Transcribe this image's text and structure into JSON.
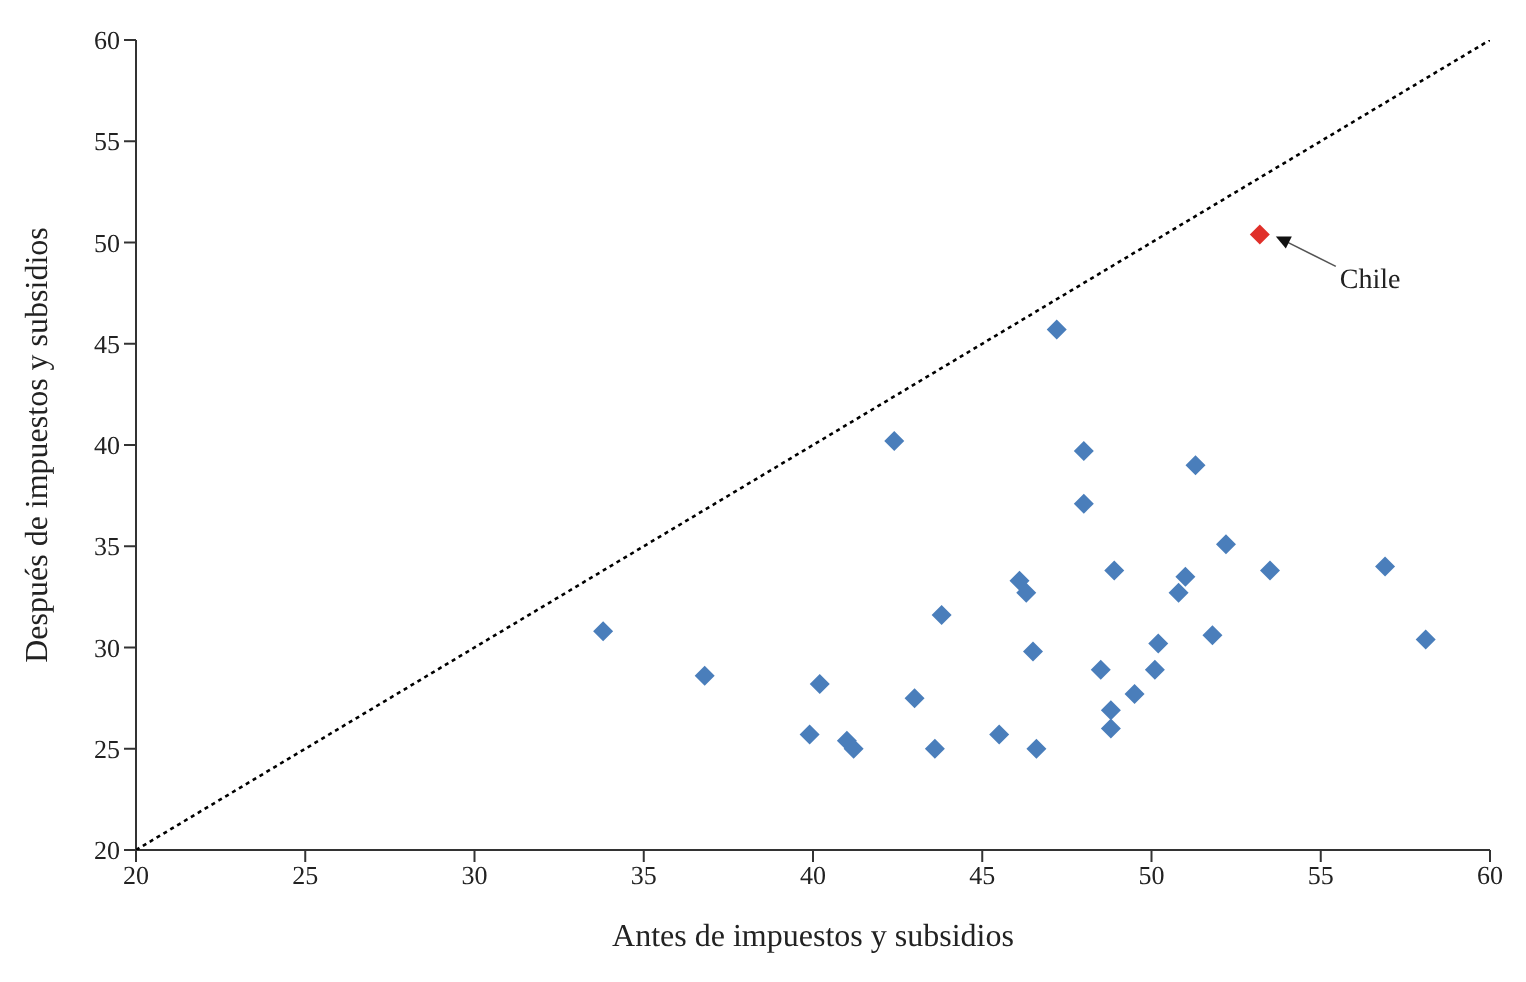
{
  "chart_data": {
    "type": "scatter",
    "xlabel": "Antes de impuestos y subsidios",
    "ylabel": "Después de impuestos y subsidios",
    "xlim": [
      20,
      60
    ],
    "ylim": [
      20,
      60
    ],
    "xticks": [
      20,
      25,
      30,
      35,
      40,
      45,
      50,
      55,
      60
    ],
    "yticks": [
      20,
      25,
      30,
      35,
      40,
      45,
      50,
      55,
      60
    ],
    "marker": "diamond",
    "series": [
      {
        "type": "line",
        "color": "#000000",
        "line_style": "dotted",
        "marker": "none",
        "x": [
          20,
          60
        ],
        "values": [
          20,
          60
        ]
      },
      {
        "color": "#4a7ebb",
        "x": [
          33.8,
          36.8,
          40.2,
          39.9,
          41.0,
          41.2,
          42.4,
          43.0,
          43.8,
          43.6,
          45.5,
          46.1,
          46.3,
          46.5,
          46.6,
          47.2,
          48.0,
          48.0,
          48.5,
          48.9,
          48.8,
          48.8,
          49.5,
          50.1,
          50.2,
          51.0,
          50.8,
          51.3,
          51.8,
          52.2,
          53.5,
          56.9,
          58.1
        ],
        "values": [
          30.8,
          28.6,
          28.2,
          25.7,
          25.4,
          25.0,
          40.2,
          27.5,
          31.6,
          25.0,
          25.7,
          33.3,
          32.7,
          29.8,
          25.0,
          45.7,
          39.7,
          37.1,
          28.9,
          33.8,
          26.9,
          26.0,
          27.7,
          28.9,
          30.2,
          33.5,
          32.7,
          39.0,
          30.6,
          35.1,
          33.8,
          34.0,
          30.4
        ]
      },
      {
        "color": "#e0302a",
        "x": [
          53.2
        ],
        "values": [
          50.4
        ]
      }
    ],
    "annotations": [
      "Chile"
    ]
  }
}
